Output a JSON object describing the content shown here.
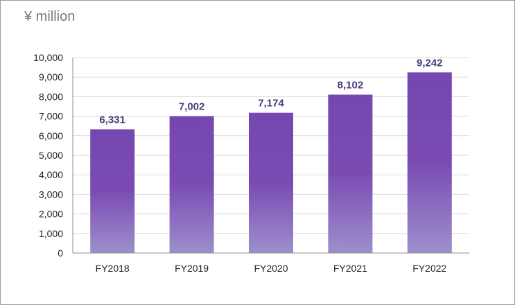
{
  "unit_label": "¥ million",
  "colors": {
    "bar_top": "#7448b0",
    "bar_mid": "#7a4cb3",
    "bar_bottom": "#9d8fcc",
    "grid": "#d9d9d9",
    "axis": "#8c8c8c",
    "data_label": "#4b3a7a"
  },
  "chart_data": {
    "type": "bar",
    "categories": [
      "FY2018",
      "FY2019",
      "FY2020",
      "FY2021",
      "FY2022"
    ],
    "values": [
      6331,
      7002,
      7174,
      8102,
      9242
    ],
    "value_labels": [
      "6,331",
      "7,002",
      "7,174",
      "8,102",
      "9,242"
    ],
    "y_ticks": [
      0,
      1000,
      2000,
      3000,
      4000,
      5000,
      6000,
      7000,
      8000,
      9000,
      10000
    ],
    "y_tick_labels": [
      "0",
      "1,000",
      "2,000",
      "3,000",
      "4,000",
      "5,000",
      "6,000",
      "7,000",
      "8,000",
      "9,000",
      "10,000"
    ],
    "ylim": [
      0,
      10000
    ],
    "grid": true,
    "legend": "none",
    "title": "",
    "xlabel": "",
    "ylabel": ""
  }
}
